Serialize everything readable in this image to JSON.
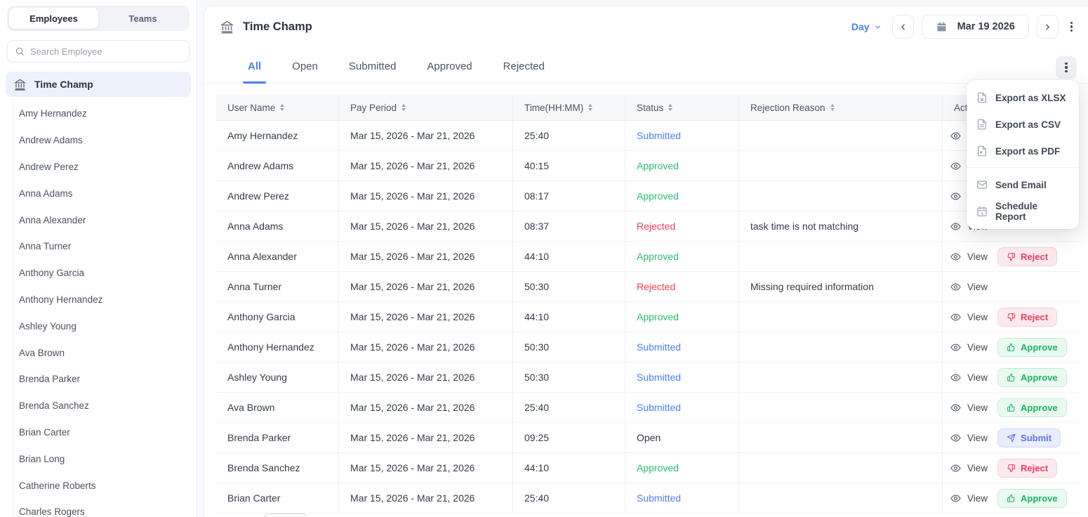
{
  "sidebar": {
    "tabs": [
      {
        "label": "Employees",
        "active": true
      },
      {
        "label": "Teams",
        "active": false
      }
    ],
    "search_placeholder": "Search Employee",
    "group_label": "Time Champ",
    "employees": [
      "Amy Hernandez",
      "Andrew Adams",
      "Andrew Perez",
      "Anna Adams",
      "Anna Alexander",
      "Anna Turner",
      "Anthony Garcia",
      "Anthony Hernandez",
      "Ashley Young",
      "Ava Brown",
      "Brenda Parker",
      "Brenda Sanchez",
      "Brian Carter",
      "Brian Long",
      "Catherine Roberts",
      "Charles Rogers"
    ]
  },
  "header": {
    "title": "Time Champ",
    "period": "Day",
    "date": "Mar 19 2026"
  },
  "filter_tabs": {
    "active": "All",
    "items": [
      "All",
      "Open",
      "Submitted",
      "Approved",
      "Rejected"
    ]
  },
  "export_menu": {
    "items": [
      {
        "icon": "file-xlsx-icon",
        "label": "Export as XLSX"
      },
      {
        "icon": "file-csv-icon",
        "label": "Export as CSV"
      },
      {
        "icon": "file-pdf-icon",
        "label": "Export as PDF"
      },
      {
        "icon": "email-icon",
        "label": "Send Email",
        "divider_before": true
      },
      {
        "icon": "schedule-icon",
        "label": "Schedule Report"
      }
    ]
  },
  "table": {
    "columns": [
      {
        "label": "User Name",
        "sortable": true
      },
      {
        "label": "Pay Period",
        "sortable": true
      },
      {
        "label": "Time(HH:MM)",
        "sortable": true
      },
      {
        "label": "Status",
        "sortable": true
      },
      {
        "label": "Rejection Reason",
        "sortable": true
      },
      {
        "label": "Actions",
        "sortable": false
      }
    ],
    "action_labels": {
      "view": "View",
      "approve": "Approve",
      "reject": "Reject",
      "submit": "Submit"
    },
    "rows": [
      {
        "name": "Amy Hernandez",
        "period": "Mar 15, 2026 - Mar 21, 2026",
        "time": "25:40",
        "status": "Submitted",
        "reason": "",
        "action": "approve"
      },
      {
        "name": "Andrew Adams",
        "period": "Mar 15, 2026 - Mar 21, 2026",
        "time": "40:15",
        "status": "Approved",
        "reason": "",
        "action": "reject"
      },
      {
        "name": "Andrew Perez",
        "period": "Mar 15, 2026 - Mar 21, 2026",
        "time": "08:17",
        "status": "Approved",
        "reason": "",
        "action": "reject"
      },
      {
        "name": "Anna Adams",
        "period": "Mar 15, 2026 - Mar 21, 2026",
        "time": "08:37",
        "status": "Rejected",
        "reason": "task time is not matching",
        "action": null
      },
      {
        "name": "Anna Alexander",
        "period": "Mar 15, 2026 - Mar 21, 2026",
        "time": "44:10",
        "status": "Approved",
        "reason": "",
        "action": "reject"
      },
      {
        "name": "Anna Turner",
        "period": "Mar 15, 2026 - Mar 21, 2026",
        "time": "50:30",
        "status": "Rejected",
        "reason": "Missing required information",
        "action": null
      },
      {
        "name": "Anthony Garcia",
        "period": "Mar 15, 2026 - Mar 21, 2026",
        "time": "44:10",
        "status": "Approved",
        "reason": "",
        "action": "reject"
      },
      {
        "name": "Anthony Hernandez",
        "period": "Mar 15, 2026 - Mar 21, 2026",
        "time": "50:30",
        "status": "Submitted",
        "reason": "",
        "action": "approve"
      },
      {
        "name": "Ashley Young",
        "period": "Mar 15, 2026 - Mar 21, 2026",
        "time": "50:30",
        "status": "Submitted",
        "reason": "",
        "action": "approve"
      },
      {
        "name": "Ava Brown",
        "period": "Mar 15, 2026 - Mar 21, 2026",
        "time": "25:40",
        "status": "Submitted",
        "reason": "",
        "action": "approve"
      },
      {
        "name": "Brenda Parker",
        "period": "Mar 15, 2026 - Mar 21, 2026",
        "time": "09:25",
        "status": "Open",
        "reason": "",
        "action": "submit"
      },
      {
        "name": "Brenda Sanchez",
        "period": "Mar 15, 2026 - Mar 21, 2026",
        "time": "44:10",
        "status": "Approved",
        "reason": "",
        "action": "reject"
      },
      {
        "name": "Brian Carter",
        "period": "Mar 15, 2026 - Mar 21, 2026",
        "time": "25:40",
        "status": "Submitted",
        "reason": "",
        "action": "approve"
      }
    ]
  },
  "colors": {
    "accent": "#4d7dfb",
    "approved": "#2bbf6f",
    "rejected": "#f0414e",
    "submitted": "#4d7dfb",
    "open": "#2b3442"
  }
}
